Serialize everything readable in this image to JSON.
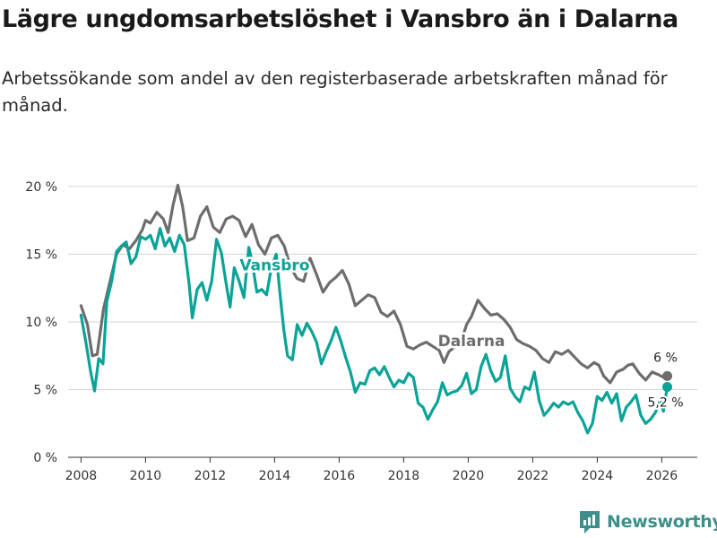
{
  "title": "Lägre ungdomsarbetslöshet i Vansbro än i Dalarna",
  "subtitle": "Arbetssökande som andel av den registerbaserade arbetskraften månad för månad.",
  "brand": {
    "name": "Newsworthy",
    "logo_icon": "newsworthy-logo-icon"
  },
  "colors": {
    "vansbro": "#0aa397",
    "dalarna": "#6d6d6d",
    "grid": "#d4d4d4",
    "brand": "#3c8f8a"
  },
  "chart_data": {
    "type": "line",
    "title": "Lägre ungdomsarbetslöshet i Vansbro än i Dalarna",
    "xlabel": "",
    "ylabel": "",
    "xlim": [
      2007.6,
      2027.1
    ],
    "ylim": [
      0,
      20
    ],
    "yticks": [
      0,
      5,
      10,
      15,
      20
    ],
    "ytick_labels": [
      "0 %",
      "5 %",
      "10 %",
      "15 %",
      "20 %"
    ],
    "xticks": [
      2008,
      2010,
      2012,
      2014,
      2016,
      2018,
      2020,
      2022,
      2024,
      2026
    ],
    "xtick_labels": [
      "2008",
      "2010",
      "2012",
      "2014",
      "2016",
      "2018",
      "2020",
      "2022",
      "2024",
      "2026"
    ],
    "grid": true,
    "series": [
      {
        "name": "Dalarna",
        "label": "Dalarna",
        "end_label": "6 %",
        "end_value": 6.0,
        "points": [
          [
            2008.0,
            11.2
          ],
          [
            2008.2,
            9.8
          ],
          [
            2008.35,
            7.5
          ],
          [
            2008.5,
            7.6
          ],
          [
            2008.7,
            11.0
          ],
          [
            2008.9,
            13.0
          ],
          [
            2009.1,
            15.0
          ],
          [
            2009.3,
            15.7
          ],
          [
            2009.5,
            15.4
          ],
          [
            2009.7,
            16.0
          ],
          [
            2009.9,
            16.8
          ],
          [
            2010.0,
            17.5
          ],
          [
            2010.15,
            17.3
          ],
          [
            2010.35,
            18.1
          ],
          [
            2010.55,
            17.6
          ],
          [
            2010.7,
            16.6
          ],
          [
            2010.85,
            18.6
          ],
          [
            2011.0,
            20.1
          ],
          [
            2011.15,
            18.5
          ],
          [
            2011.3,
            16.0
          ],
          [
            2011.5,
            16.2
          ],
          [
            2011.7,
            17.8
          ],
          [
            2011.9,
            18.5
          ],
          [
            2012.1,
            17.0
          ],
          [
            2012.3,
            16.6
          ],
          [
            2012.5,
            17.6
          ],
          [
            2012.7,
            17.8
          ],
          [
            2012.9,
            17.5
          ],
          [
            2013.1,
            16.3
          ],
          [
            2013.3,
            17.2
          ],
          [
            2013.5,
            15.7
          ],
          [
            2013.7,
            15.0
          ],
          [
            2013.9,
            16.2
          ],
          [
            2014.1,
            16.4
          ],
          [
            2014.3,
            15.6
          ],
          [
            2014.5,
            14.0
          ],
          [
            2014.7,
            13.2
          ],
          [
            2014.9,
            13.0
          ],
          [
            2015.1,
            14.7
          ],
          [
            2015.3,
            13.5
          ],
          [
            2015.5,
            12.2
          ],
          [
            2015.7,
            12.9
          ],
          [
            2015.9,
            13.3
          ],
          [
            2016.1,
            13.8
          ],
          [
            2016.3,
            12.8
          ],
          [
            2016.5,
            11.2
          ],
          [
            2016.7,
            11.6
          ],
          [
            2016.9,
            12.0
          ],
          [
            2017.1,
            11.8
          ],
          [
            2017.3,
            10.7
          ],
          [
            2017.5,
            10.4
          ],
          [
            2017.7,
            10.8
          ],
          [
            2017.9,
            9.8
          ],
          [
            2018.1,
            8.2
          ],
          [
            2018.3,
            8.0
          ],
          [
            2018.5,
            8.3
          ],
          [
            2018.7,
            8.5
          ],
          [
            2018.9,
            8.2
          ],
          [
            2019.1,
            7.9
          ],
          [
            2019.25,
            7.0
          ],
          [
            2019.4,
            7.8
          ],
          [
            2019.6,
            8.2
          ],
          [
            2019.8,
            8.7
          ],
          [
            2019.95,
            9.8
          ],
          [
            2020.1,
            10.4
          ],
          [
            2020.3,
            11.6
          ],
          [
            2020.5,
            11.0
          ],
          [
            2020.7,
            10.5
          ],
          [
            2020.9,
            10.6
          ],
          [
            2021.1,
            10.2
          ],
          [
            2021.3,
            9.6
          ],
          [
            2021.5,
            8.7
          ],
          [
            2021.7,
            8.4
          ],
          [
            2021.9,
            8.2
          ],
          [
            2022.1,
            7.9
          ],
          [
            2022.3,
            7.3
          ],
          [
            2022.5,
            7.0
          ],
          [
            2022.7,
            7.8
          ],
          [
            2022.9,
            7.6
          ],
          [
            2023.1,
            7.9
          ],
          [
            2023.3,
            7.4
          ],
          [
            2023.5,
            6.9
          ],
          [
            2023.7,
            6.6
          ],
          [
            2023.9,
            7.0
          ],
          [
            2024.05,
            6.8
          ],
          [
            2024.2,
            6.0
          ],
          [
            2024.4,
            5.5
          ],
          [
            2024.6,
            6.3
          ],
          [
            2024.8,
            6.5
          ],
          [
            2024.95,
            6.8
          ],
          [
            2025.1,
            6.9
          ],
          [
            2025.3,
            6.2
          ],
          [
            2025.5,
            5.7
          ],
          [
            2025.7,
            6.3
          ],
          [
            2025.9,
            6.1
          ],
          [
            2026.05,
            5.9
          ],
          [
            2026.17,
            6.0
          ]
        ]
      },
      {
        "name": "Vansbro",
        "label": "Vansbro",
        "end_label": "5,2 %",
        "end_value": 5.2,
        "points": [
          [
            2008.0,
            10.5
          ],
          [
            2008.15,
            8.5
          ],
          [
            2008.3,
            6.3
          ],
          [
            2008.42,
            4.9
          ],
          [
            2008.55,
            7.3
          ],
          [
            2008.68,
            6.9
          ],
          [
            2008.8,
            11.5
          ],
          [
            2008.95,
            13.0
          ],
          [
            2009.1,
            15.2
          ],
          [
            2009.25,
            15.6
          ],
          [
            2009.4,
            15.9
          ],
          [
            2009.55,
            14.3
          ],
          [
            2009.7,
            14.8
          ],
          [
            2009.85,
            16.3
          ],
          [
            2010.0,
            16.1
          ],
          [
            2010.15,
            16.4
          ],
          [
            2010.3,
            15.4
          ],
          [
            2010.45,
            16.9
          ],
          [
            2010.6,
            15.6
          ],
          [
            2010.75,
            16.2
          ],
          [
            2010.9,
            15.2
          ],
          [
            2011.05,
            16.4
          ],
          [
            2011.2,
            15.7
          ],
          [
            2011.35,
            12.8
          ],
          [
            2011.45,
            10.3
          ],
          [
            2011.6,
            12.4
          ],
          [
            2011.75,
            12.9
          ],
          [
            2011.9,
            11.6
          ],
          [
            2012.05,
            13.0
          ],
          [
            2012.2,
            16.1
          ],
          [
            2012.35,
            15.1
          ],
          [
            2012.5,
            12.8
          ],
          [
            2012.62,
            11.1
          ],
          [
            2012.75,
            14.0
          ],
          [
            2012.9,
            13.0
          ],
          [
            2013.05,
            11.8
          ],
          [
            2013.2,
            15.5
          ],
          [
            2013.3,
            14.5
          ],
          [
            2013.45,
            12.2
          ],
          [
            2013.6,
            12.4
          ],
          [
            2013.75,
            12.0
          ],
          [
            2013.9,
            14.0
          ],
          [
            2014.05,
            15.0
          ],
          [
            2014.15,
            12.5
          ],
          [
            2014.28,
            9.5
          ],
          [
            2014.4,
            7.5
          ],
          [
            2014.55,
            7.2
          ],
          [
            2014.7,
            9.8
          ],
          [
            2014.85,
            9.0
          ],
          [
            2015.0,
            9.9
          ],
          [
            2015.15,
            9.3
          ],
          [
            2015.3,
            8.5
          ],
          [
            2015.45,
            6.9
          ],
          [
            2015.6,
            7.8
          ],
          [
            2015.75,
            8.6
          ],
          [
            2015.9,
            9.6
          ],
          [
            2016.05,
            8.6
          ],
          [
            2016.2,
            7.4
          ],
          [
            2016.35,
            6.3
          ],
          [
            2016.5,
            4.8
          ],
          [
            2016.65,
            5.5
          ],
          [
            2016.8,
            5.4
          ],
          [
            2016.95,
            6.4
          ],
          [
            2017.1,
            6.6
          ],
          [
            2017.25,
            6.1
          ],
          [
            2017.4,
            6.7
          ],
          [
            2017.55,
            5.9
          ],
          [
            2017.7,
            5.2
          ],
          [
            2017.85,
            5.7
          ],
          [
            2018.0,
            5.5
          ],
          [
            2018.15,
            6.2
          ],
          [
            2018.3,
            5.9
          ],
          [
            2018.45,
            4.0
          ],
          [
            2018.6,
            3.7
          ],
          [
            2018.75,
            2.8
          ],
          [
            2018.9,
            3.5
          ],
          [
            2019.05,
            4.1
          ],
          [
            2019.2,
            5.5
          ],
          [
            2019.35,
            4.6
          ],
          [
            2019.5,
            4.8
          ],
          [
            2019.65,
            4.9
          ],
          [
            2019.8,
            5.3
          ],
          [
            2019.95,
            6.2
          ],
          [
            2020.1,
            4.7
          ],
          [
            2020.25,
            5.0
          ],
          [
            2020.4,
            6.7
          ],
          [
            2020.55,
            7.6
          ],
          [
            2020.7,
            6.4
          ],
          [
            2020.85,
            5.6
          ],
          [
            2021.0,
            5.9
          ],
          [
            2021.15,
            7.5
          ],
          [
            2021.3,
            5.1
          ],
          [
            2021.45,
            4.5
          ],
          [
            2021.6,
            4.1
          ],
          [
            2021.75,
            5.2
          ],
          [
            2021.9,
            5.0
          ],
          [
            2022.05,
            6.3
          ],
          [
            2022.2,
            4.2
          ],
          [
            2022.35,
            3.1
          ],
          [
            2022.5,
            3.5
          ],
          [
            2022.65,
            4.0
          ],
          [
            2022.8,
            3.7
          ],
          [
            2022.95,
            4.1
          ],
          [
            2023.1,
            3.9
          ],
          [
            2023.25,
            4.1
          ],
          [
            2023.4,
            3.3
          ],
          [
            2023.55,
            2.7
          ],
          [
            2023.7,
            1.8
          ],
          [
            2023.85,
            2.5
          ],
          [
            2024.0,
            4.5
          ],
          [
            2024.15,
            4.2
          ],
          [
            2024.3,
            4.8
          ],
          [
            2024.45,
            4.0
          ],
          [
            2024.6,
            4.7
          ],
          [
            2024.75,
            2.7
          ],
          [
            2024.9,
            3.7
          ],
          [
            2025.05,
            4.1
          ],
          [
            2025.2,
            4.6
          ],
          [
            2025.35,
            3.1
          ],
          [
            2025.5,
            2.5
          ],
          [
            2025.65,
            2.8
          ],
          [
            2025.8,
            3.3
          ],
          [
            2025.95,
            4.2
          ],
          [
            2026.05,
            3.4
          ],
          [
            2026.17,
            5.2
          ]
        ]
      }
    ]
  }
}
